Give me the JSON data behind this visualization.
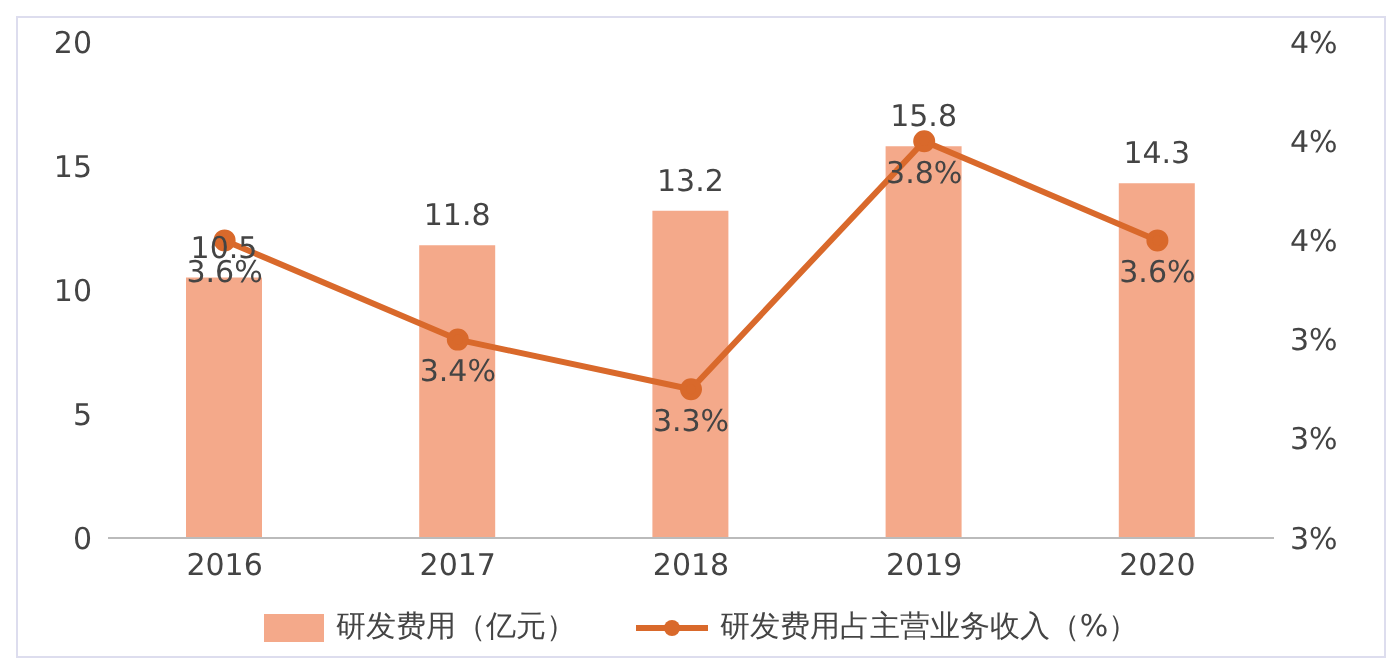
{
  "chart_data": {
    "type": "bar",
    "categories": [
      "2016",
      "2017",
      "2018",
      "2019",
      "2020"
    ],
    "series": [
      {
        "name": "研发费用（亿元）",
        "color": "#f4a98a",
        "values": [
          10.5,
          11.8,
          13.2,
          15.8,
          14.3
        ],
        "value_labels": [
          "10.5",
          "11.8",
          "13.2",
          "15.8",
          "14.3"
        ]
      },
      {
        "name": "研发费用占主营业务收入（%）",
        "type": "line",
        "axis": "y2",
        "color": "#d9692b",
        "values": [
          3.6,
          3.4,
          3.3,
          3.8,
          3.6
        ],
        "value_labels": [
          "3.6%",
          "3.4%",
          "3.3%",
          "3.8%",
          "3.6%"
        ]
      }
    ],
    "ylim": [
      0,
      20
    ],
    "yticks": [
      0,
      5,
      10,
      15,
      20
    ],
    "y2lim": [
      3.0,
      4.0
    ],
    "y2ticks": [
      {
        "value": 3.0,
        "label": "3%"
      },
      {
        "value": 3.2,
        "label": "3%"
      },
      {
        "value": 3.4,
        "label": "3%"
      },
      {
        "value": 3.6,
        "label": "4%"
      },
      {
        "value": 3.8,
        "label": "4%"
      },
      {
        "value": 4.0,
        "label": "4%"
      }
    ],
    "legend": "bottom",
    "marker": "circle",
    "line_style": "solid"
  }
}
